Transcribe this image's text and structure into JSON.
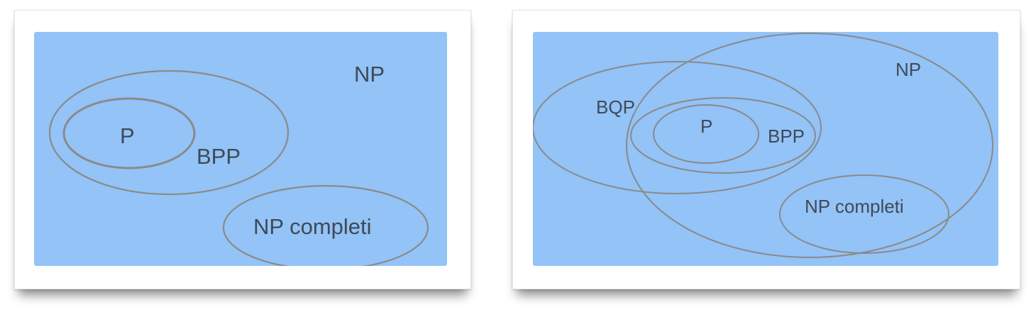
{
  "colors": {
    "panel_fill": "#93c3f7",
    "ellipse_stroke": "#8a8a8a",
    "label_text": "#3f4a57"
  },
  "diagrams": [
    {
      "labels": {
        "np": "NP",
        "p": "P",
        "bpp": "BPP",
        "np_complete": "NP completi"
      }
    },
    {
      "labels": {
        "np": "NP",
        "bqp": "BQP",
        "p": "P",
        "bpp": "BPP",
        "np_complete": "NP completi"
      }
    }
  ]
}
